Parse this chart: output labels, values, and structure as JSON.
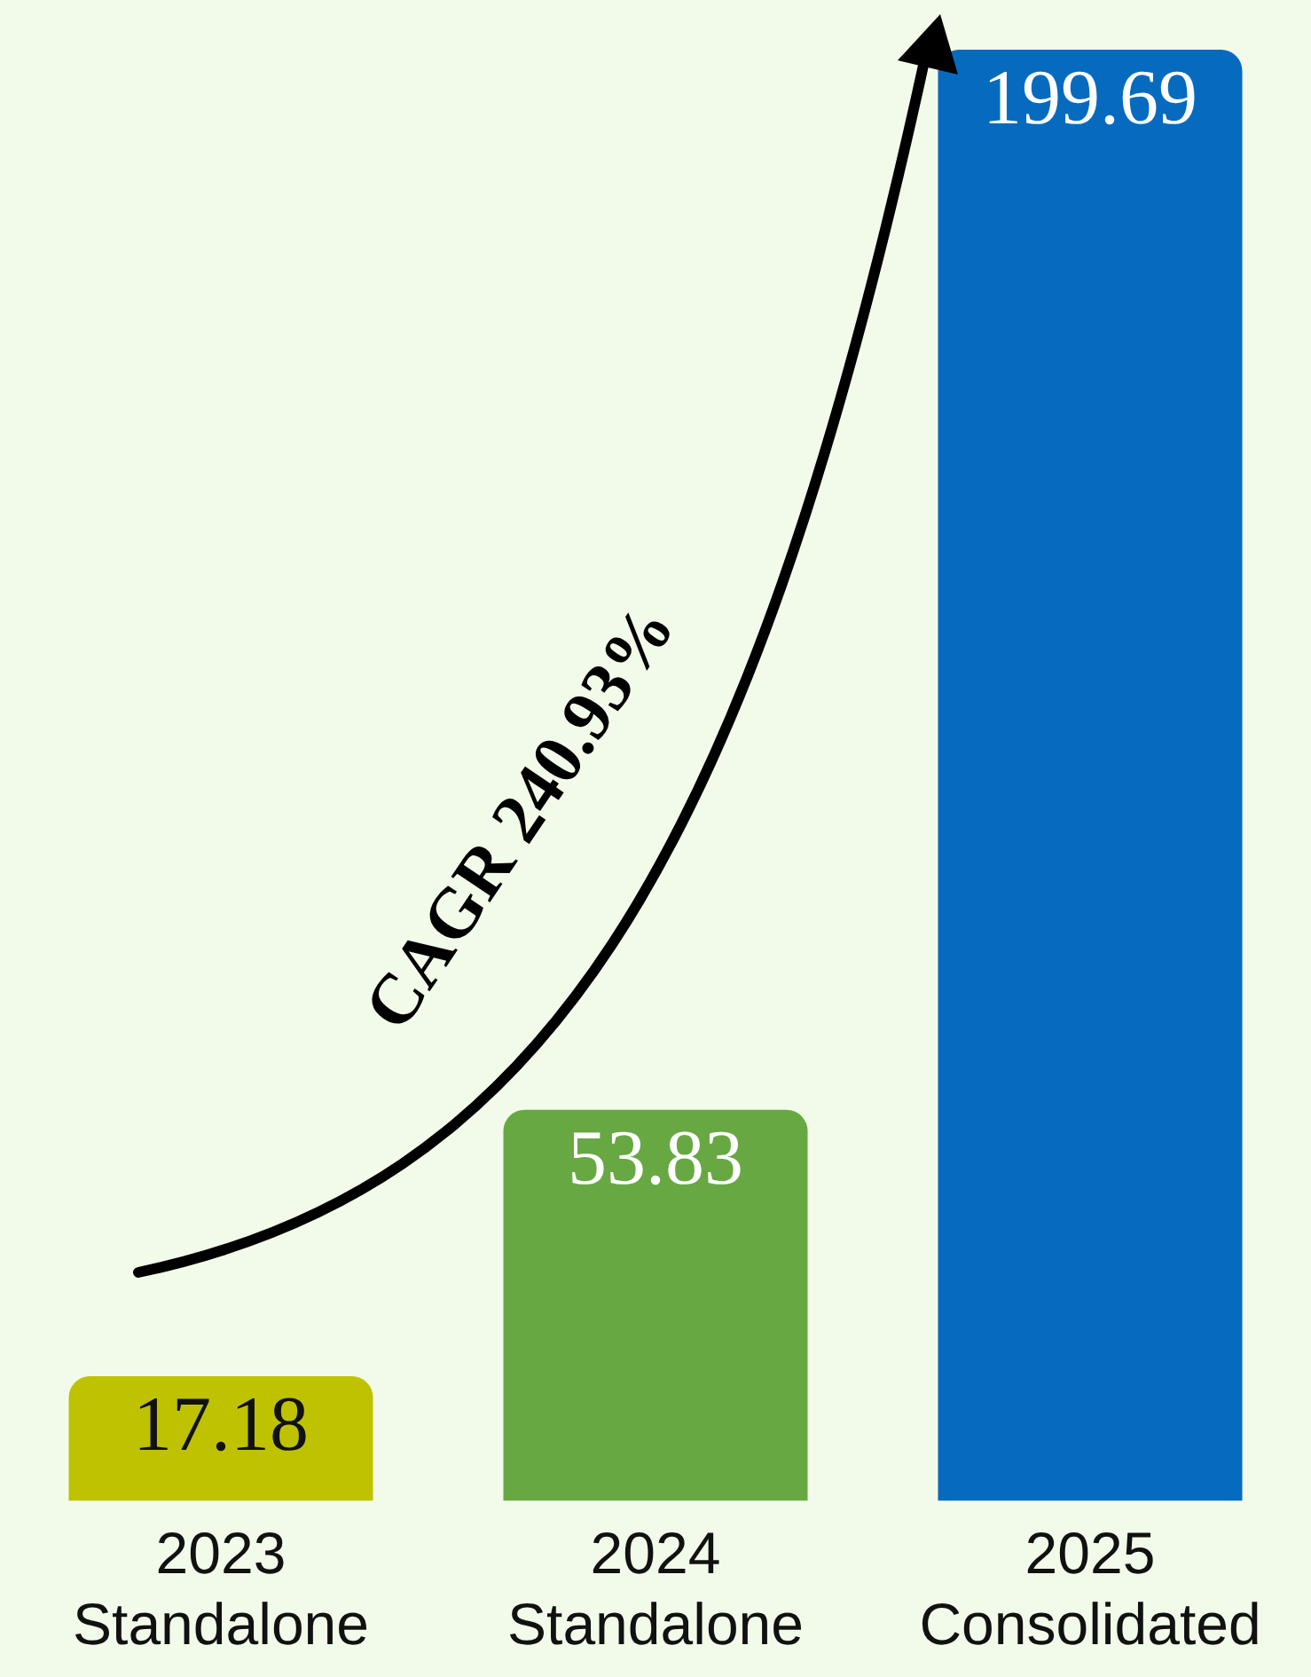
{
  "chart_data": {
    "type": "bar",
    "categories": [
      "2023\nStandalone",
      "2024\nStandalone",
      "2025\nConsolidated"
    ],
    "values": [
      17.18,
      53.83,
      199.69
    ],
    "colors": [
      "#bfc200",
      "#67a843",
      "#066bbf"
    ],
    "data_labels": true,
    "annotations": [
      "CAGR 240.93%"
    ]
  }
}
